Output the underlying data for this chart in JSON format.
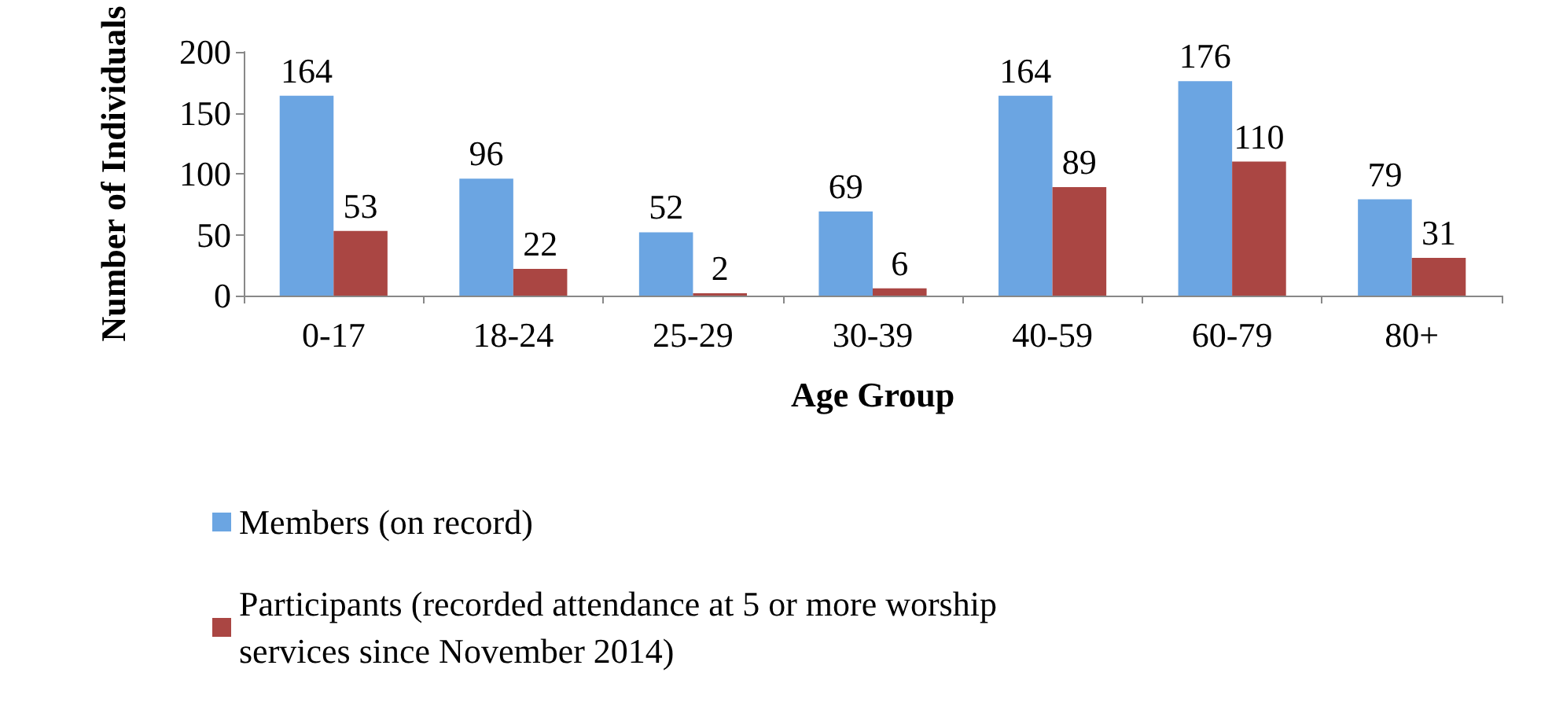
{
  "chart_data": {
    "type": "bar",
    "xlabel": "Age Group",
    "ylabel": "Number of Individuals",
    "categories": [
      "0-17",
      "18-24",
      "25-29",
      "30-39",
      "40-59",
      "60-79",
      "80+"
    ],
    "series": [
      {
        "name": "Members (on record)",
        "color": "#6ba5e2",
        "values": [
          164,
          96,
          52,
          69,
          164,
          176,
          79
        ]
      },
      {
        "name": "Participants (recorded attendance at 5 or more worship services since November 2014)",
        "color": "#aa4643",
        "values": [
          53,
          22,
          2,
          6,
          89,
          110,
          31
        ]
      }
    ],
    "ylim": [
      0,
      200
    ],
    "yticks": [
      0,
      50,
      100,
      150,
      200
    ],
    "data_labels": true,
    "grid": false,
    "legend": "bottom"
  }
}
